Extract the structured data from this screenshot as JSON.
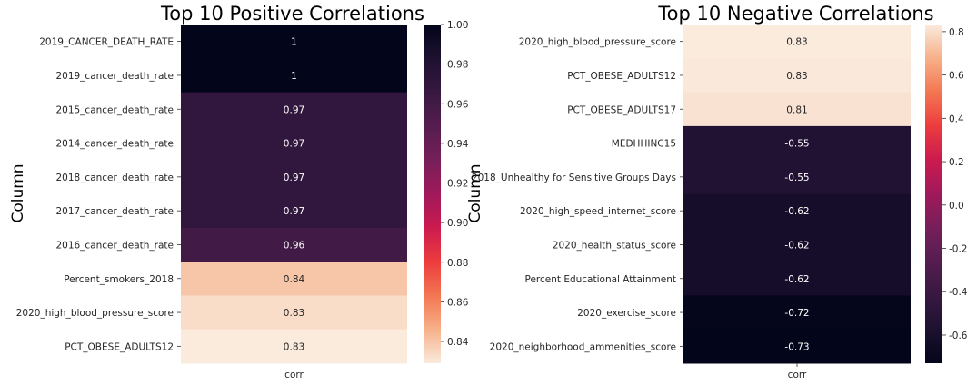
{
  "chart_data": [
    {
      "type": "heatmap",
      "title": "Top 10 Positive Correlations",
      "ylabel": "Column",
      "xlabel": "",
      "x_categories": [
        "corr"
      ],
      "rows": [
        {
          "label": "2019_CANCER_DEATH_RATE",
          "value": 1.0,
          "text": "1"
        },
        {
          "label": "2019_cancer_death_rate",
          "value": 1.0,
          "text": "1"
        },
        {
          "label": "2015_cancer_death_rate",
          "value": 0.97,
          "text": "0.97"
        },
        {
          "label": "2014_cancer_death_rate",
          "value": 0.97,
          "text": "0.97"
        },
        {
          "label": "2018_cancer_death_rate",
          "value": 0.97,
          "text": "0.97"
        },
        {
          "label": "2017_cancer_death_rate",
          "value": 0.97,
          "text": "0.97"
        },
        {
          "label": "2016_cancer_death_rate",
          "value": 0.96,
          "text": "0.96"
        },
        {
          "label": "Percent_smokers_2018",
          "value": 0.84,
          "text": "0.84"
        },
        {
          "label": "2020_high_blood_pressure_score",
          "value": 0.833,
          "text": "0.83"
        },
        {
          "label": "PCT_OBESE_ADULTS12",
          "value": 0.829,
          "text": "0.83"
        }
      ],
      "colorbar": {
        "vmin": 0.829,
        "vmax": 1.0,
        "ticks": [
          "0.84",
          "0.86",
          "0.88",
          "0.90",
          "0.92",
          "0.94",
          "0.96",
          "0.98",
          "1.00"
        ]
      },
      "colormap": "rocket_r"
    },
    {
      "type": "heatmap",
      "title": "Top 10 Negative Correlations",
      "ylabel": "Column",
      "xlabel": "",
      "x_categories": [
        "corr"
      ],
      "rows": [
        {
          "label": "2020_high_blood_pressure_score",
          "value": 0.833,
          "text": "0.83"
        },
        {
          "label": "PCT_OBESE_ADULTS12",
          "value": 0.829,
          "text": "0.83"
        },
        {
          "label": "PCT_OBESE_ADULTS17",
          "value": 0.81,
          "text": "0.81"
        },
        {
          "label": "MEDHHINC15",
          "value": -0.55,
          "text": "-0.55"
        },
        {
          "label": "2018_Unhealthy for Sensitive Groups Days",
          "value": -0.55,
          "text": "-0.55"
        },
        {
          "label": "2020_high_speed_internet_score",
          "value": -0.62,
          "text": "-0.62"
        },
        {
          "label": "2020_health_status_score",
          "value": -0.62,
          "text": "-0.62"
        },
        {
          "label": "Percent Educational Attainment",
          "value": -0.62,
          "text": "-0.62"
        },
        {
          "label": "2020_exercise_score",
          "value": -0.72,
          "text": "-0.72"
        },
        {
          "label": "2020_neighborhood_ammenities_score",
          "value": -0.73,
          "text": "-0.73"
        }
      ],
      "colorbar": {
        "vmin": -0.73,
        "vmax": 0.833,
        "ticks": [
          "-0.6",
          "-0.4",
          "-0.2",
          "0.0",
          "0.2",
          "0.4",
          "0.6",
          "0.8"
        ]
      },
      "colormap": "rocket"
    }
  ]
}
